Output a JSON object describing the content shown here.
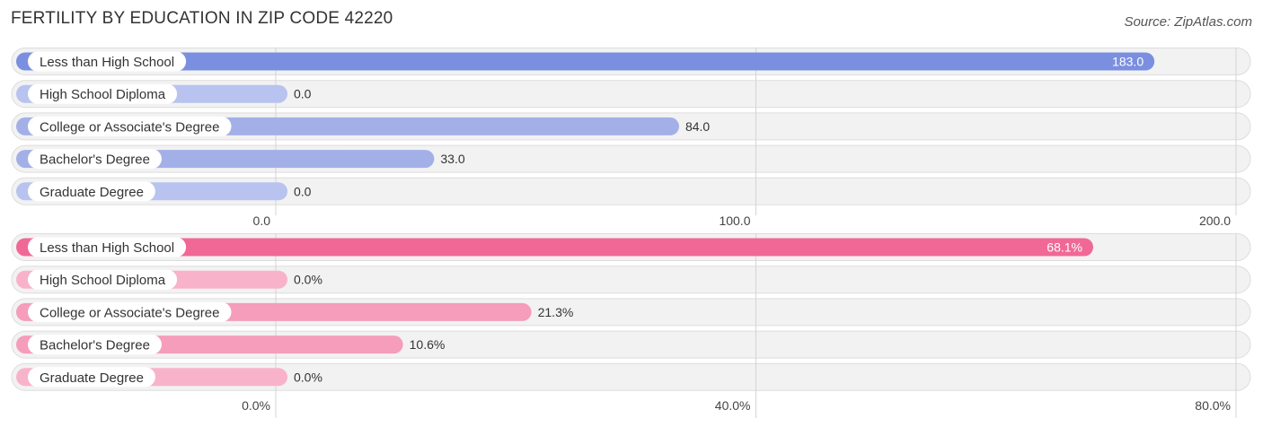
{
  "title": "FERTILITY BY EDUCATION IN ZIP CODE 42220",
  "source": "Source: ZipAtlas.com",
  "chart_data": [
    {
      "type": "bar",
      "orientation": "horizontal",
      "categories": [
        "Less than High School",
        "High School Diploma",
        "College or Associate's Degree",
        "Bachelor's Degree",
        "Graduate Degree"
      ],
      "values": [
        183.0,
        0.0,
        84.0,
        33.0,
        0.0
      ],
      "value_labels": [
        "183.0",
        "0.0",
        "84.0",
        "33.0",
        "0.0"
      ],
      "xlim": [
        0,
        200
      ],
      "ticks": [
        0,
        100,
        200
      ],
      "tick_labels": [
        "0.0",
        "100.0",
        "200.0"
      ],
      "colors": {
        "highlight": "#7b8fe0",
        "normal": "#a3b0e8",
        "light": "#b8c3ef"
      }
    },
    {
      "type": "bar",
      "orientation": "horizontal",
      "categories": [
        "Less than High School",
        "High School Diploma",
        "College or Associate's Degree",
        "Bachelor's Degree",
        "Graduate Degree"
      ],
      "values": [
        68.1,
        0.0,
        21.3,
        10.6,
        0.0
      ],
      "value_labels": [
        "68.1%",
        "0.0%",
        "21.3%",
        "10.6%",
        "0.0%"
      ],
      "xlim": [
        0,
        80
      ],
      "ticks": [
        0,
        40,
        80
      ],
      "tick_labels": [
        "0.0%",
        "40.0%",
        "80.0%"
      ],
      "colors": {
        "highlight": "#f06896",
        "normal": "#f59dbb",
        "light": "#f8b3cb"
      }
    }
  ]
}
